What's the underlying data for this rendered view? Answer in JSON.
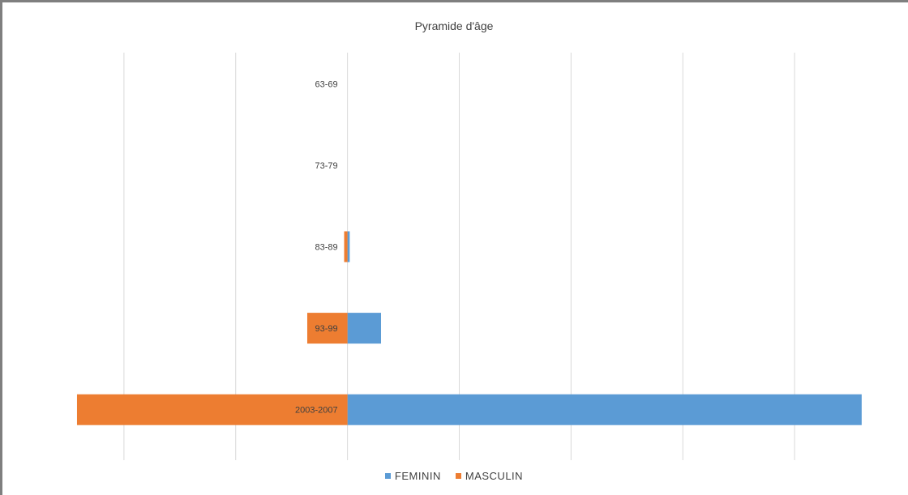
{
  "chart_data": {
    "type": "bar",
    "orientation": "horizontal",
    "title": "Pyramide d'âge",
    "categories": [
      "2003-2007",
      "93-99",
      "83-89",
      "73-79",
      "63-69"
    ],
    "series": [
      {
        "name": "FEMININ",
        "color": "#5b9bd5",
        "values": [
          23000,
          1500,
          100,
          0,
          0
        ]
      },
      {
        "name": "MASCULIN",
        "color": "#ed7d31",
        "values": [
          -12100,
          -1800,
          -150,
          0,
          0
        ]
      }
    ],
    "xlim": [
      -15000,
      25000
    ],
    "grid": true,
    "legend_position": "bottom",
    "xlabel": "",
    "ylabel": ""
  }
}
